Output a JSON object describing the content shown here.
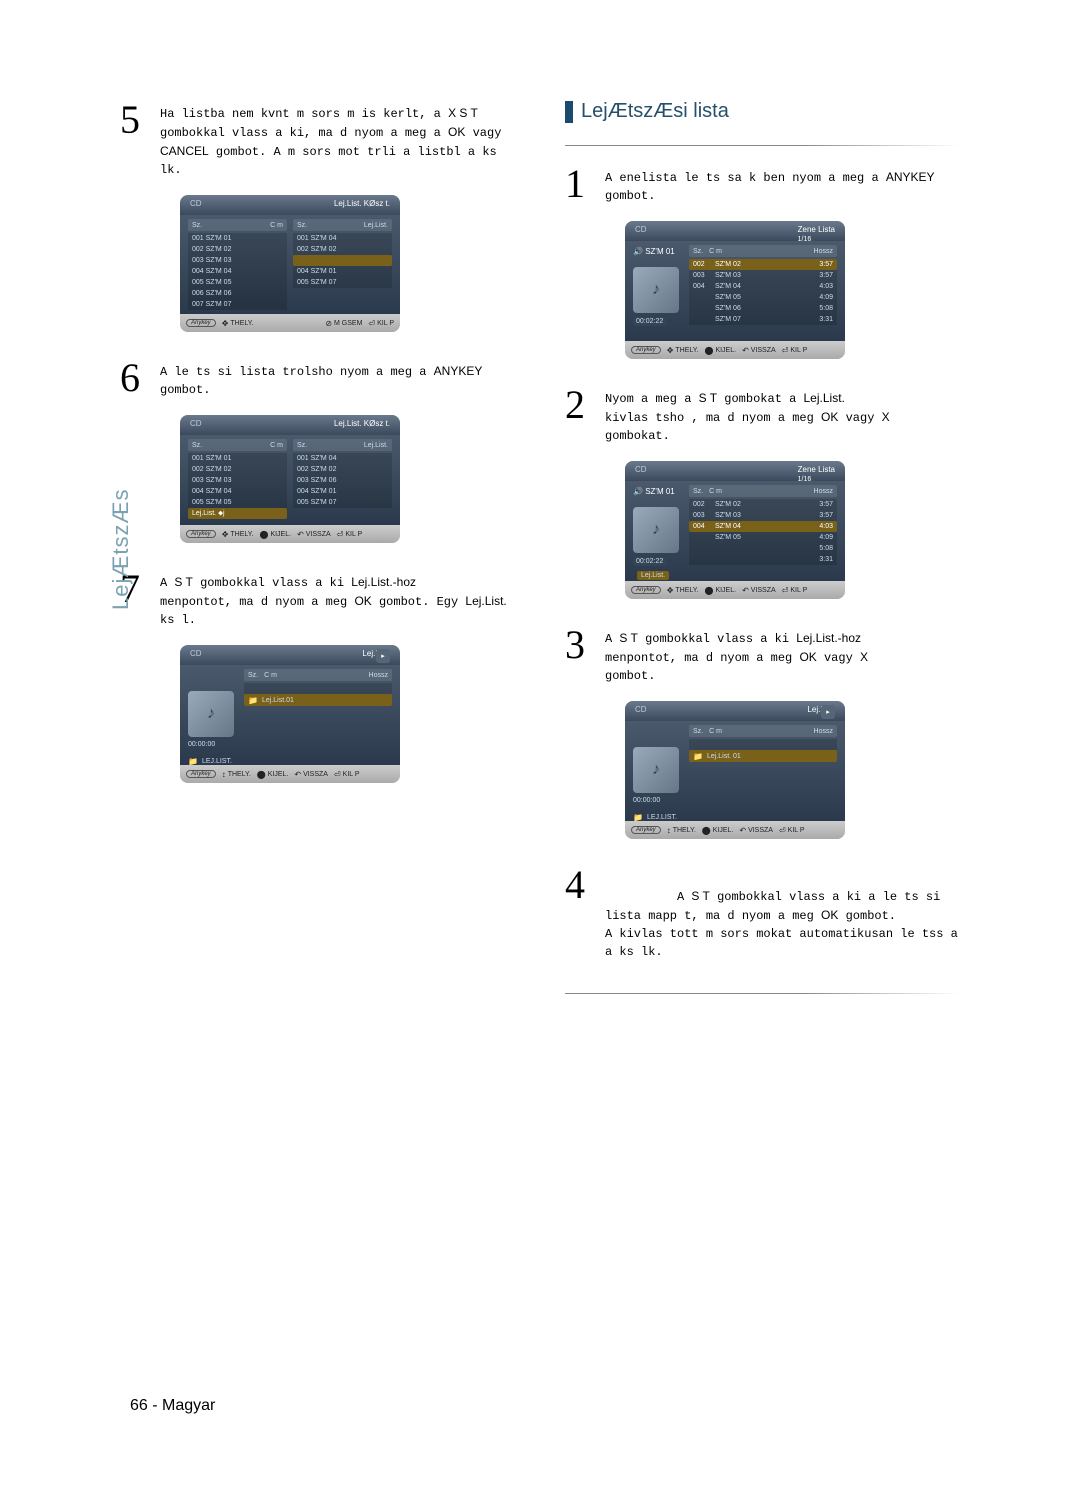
{
  "side_tab": "LejÆtszÆs",
  "page_number": "66 - Magyar",
  "section_right_title": "LejÆtszÆsi lista",
  "colors": {
    "section_bar": "#1a4a6c",
    "section_text": "#26506a",
    "highlight_row": "#7a611a",
    "side_tab_color": "#7aa2b4"
  },
  "left": {
    "step5": {
      "num": "5",
      "text_a": "Ha listba nem kvnt m sors m is kerlt, a",
      "text_b": "X S T",
      "text_c": " gombokkal vlass a ki, ma d nyom a meg a ",
      "text_d": "OK",
      "text_e": " vagy",
      "text_f": "CANCEL",
      "text_g": " gombot. A m sors mot trli a listbl a ks lk."
    },
    "scr5": {
      "disc": "CD",
      "title": "Lej.List. KØsz t.",
      "hdr_l_a": "Sz.",
      "hdr_l_b": "C m",
      "hdr_r_a": "Sz.",
      "hdr_r_b": "Lej.List.",
      "left_rows": [
        "001  SZ'M 01",
        "002  SZ'M 02",
        "003  SZ'M 03",
        "004  SZ'M 04",
        "005  SZ'M 05",
        "006  SZ'M 06",
        "007  SZ'M 07"
      ],
      "right_rows": [
        "001  SZ'M 04",
        "002  SZ'M 02",
        "",
        "004  SZ'M 01",
        "005  SZ'M 07"
      ],
      "right_hl_index": 2,
      "footer": {
        "anykey": "Anykey",
        "a": "THELY.",
        "b": "M GSEM",
        "c": "KIL P"
      }
    },
    "step6": {
      "num": "6",
      "text_a": "A le ts si lista trolsho  nyom a meg a",
      "text_b": "ANYKEY",
      "text_c": " gombot."
    },
    "scr6": {
      "disc": "CD",
      "title": "Lej.List. KØsz t.",
      "hdr_l_a": "Sz.",
      "hdr_l_b": "C m",
      "hdr_r_a": "Sz.",
      "hdr_r_b": "Lej.List.",
      "left_rows": [
        "001  SZ'M 01",
        "002  SZ'M 02",
        "003  SZ'M 03",
        "004  SZ'M 04",
        "005  SZ'M 05"
      ],
      "left_tag": "Lej.List. ⬥j",
      "right_rows": [
        "001  SZ'M 04",
        "002  SZ'M 02",
        "003  SZ'M 06",
        "004  SZ'M 01",
        "005  SZ'M 07"
      ],
      "footer": {
        "anykey": "Anykey",
        "a": "THELY.",
        "b": "KIJEL.",
        "c": "VISSZA",
        "d": "KIL P"
      }
    },
    "step7": {
      "num": "7",
      "text_a": "A ",
      "text_b": "S T",
      "text_c": " gombokkal vlass a ki",
      "text_d": "Lej.List.-hoz",
      "text_e": "menpontot, ma d nyom a meg",
      "text_f": "OK",
      "text_g": " gombot.\nEgy  ",
      "text_h": "Lej.List.",
      "text_i": "  ks l."
    },
    "scr7": {
      "disc": "CD",
      "title": "Lej.List.",
      "hdr_a": "Sz.",
      "hdr_b": "C m",
      "hdr_c": "Hossz",
      "time": "00:00:00",
      "folder": "LEJ.LIST.",
      "item": "Lej.List.01",
      "footer": {
        "anykey": "Anykey",
        "a": "THELY.",
        "b": "KIJEL.",
        "c": "VISSZA",
        "d": "KIL P"
      }
    }
  },
  "right": {
    "step1": {
      "num": "1",
      "text_a": "A  enelista le ts sa k ben nyom a meg a",
      "text_b": "ANYKEY",
      "text_c": " gombot."
    },
    "scr1": {
      "disc": "CD",
      "title": "Zene Lista",
      "sub": "1/16",
      "now": "SZ'M 01",
      "time": "00:02:22",
      "hdr_a": "Sz.",
      "hdr_b": "C m",
      "hdr_c": "Hossz",
      "rows": [
        {
          "n": "002",
          "t": "SZ'M 02",
          "d": "3:57"
        },
        {
          "n": "003",
          "t": "SZ'M 03",
          "d": "3:57"
        },
        {
          "n": "004",
          "t": "SZ'M 04",
          "d": "4:03"
        },
        {
          "n": "",
          "t": "SZ'M 05",
          "d": "4:09"
        },
        {
          "n": "",
          "t": "SZ'M 06",
          "d": "5:08"
        },
        {
          "n": "",
          "t": "SZ'M 07",
          "d": "3:31"
        }
      ],
      "hl": 0,
      "footer": {
        "anykey": "Anykey",
        "a": "THELY.",
        "b": "KIJEL.",
        "c": "VISSZA",
        "d": "KIL P"
      }
    },
    "step2": {
      "num": "2",
      "text_a": "Nyom a meg a",
      "text_b": "S T",
      "text_c": " gombokat a",
      "text_d": "Lej.List.",
      "text_e": "kivlas tsho , ma d nyom a meg",
      "text_f": "OK",
      "text_g": " vagy",
      "text_h": "X",
      "text_i": "gombokat."
    },
    "scr2": {
      "disc": "CD",
      "title": "Zene Lista",
      "sub": "1/16",
      "now": "SZ'M 01",
      "time": "00:02:22",
      "hdr_a": "Sz.",
      "hdr_b": "C m",
      "hdr_c": "Hossz",
      "rows": [
        {
          "n": "002",
          "t": "SZ'M 02",
          "d": "3:57"
        },
        {
          "n": "003",
          "t": "SZ'M 03",
          "d": "3:57"
        },
        {
          "n": "004",
          "t": "SZ'M 04",
          "d": "4:03"
        },
        {
          "n": "",
          "t": "SZ'M 05",
          "d": "4:09"
        },
        {
          "n": "",
          "t": "",
          "d": "5:08"
        },
        {
          "n": "",
          "t": "",
          "d": "3:31"
        }
      ],
      "menu_tag": "Lej.List.",
      "hl": 2,
      "footer": {
        "anykey": "Anykey",
        "a": "THELY.",
        "b": "KIJEL.",
        "c": "VISSZA",
        "d": "KIL P"
      }
    },
    "step3": {
      "num": "3",
      "text_a": "A ",
      "text_b": "S T",
      "text_c": " gombokkal vlass a ki",
      "text_d": "Lej.List.-hoz",
      "text_e": "menpontot, ma d nyom a meg",
      "text_f": "OK",
      "text_g": " vagy ",
      "text_h": "X",
      "text_i": "gombot."
    },
    "scr3": {
      "disc": "CD",
      "title": "Lej.List.",
      "hdr_a": "Sz.",
      "hdr_b": "C m",
      "hdr_c": "Hossz",
      "time": "00:00:00",
      "folder": "LEJ.LIST.",
      "item": "Lej.List. 01",
      "footer": {
        "anykey": "Anykey",
        "a": "THELY.",
        "b": "KIJEL.",
        "c": "VISSZA",
        "d": "KIL P"
      }
    },
    "step4": {
      "num": "4",
      "text_a": "A ",
      "text_b": "S T",
      "text_c": " gombokkal vlass a ki a le ts si lista mapp t, ma d nyom a meg ",
      "text_d": "OK",
      "text_e": " gombot.\nA kivlas tott m sors mokat automatikusan le tss a a ks lk."
    }
  }
}
